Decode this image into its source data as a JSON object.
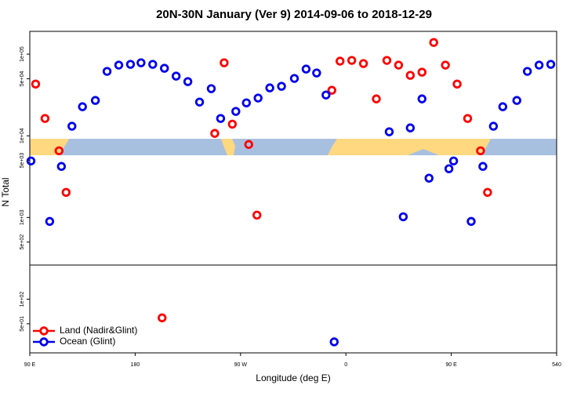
{
  "chart_data": {
    "type": "scatter",
    "title": "20N-30N January (Ver 9)   2014-09-06 to 2018-12-29",
    "xlabel": "Longitude (deg E)",
    "ylabel": "N Total",
    "xlim": [
      90,
      540
    ],
    "xticks": [
      {
        "value": 90,
        "label": "90 E"
      },
      180,
      {
        "value": 270,
        "label": "90 W"
      },
      {
        "value": 360,
        "label": "0"
      },
      {
        "value": 450,
        "label": "90 E"
      },
      540
    ],
    "ylim": [
      22,
      190000
    ],
    "ylog": true,
    "yticks": [
      {
        "value": 50,
        "label": "5e+01"
      },
      {
        "value": 100,
        "label": "1e+02"
      },
      {
        "value": 500,
        "label": "5e+02"
      },
      {
        "value": 1000,
        "label": "1e+03"
      },
      {
        "value": 5000,
        "label": "5e+03"
      },
      {
        "value": 10000,
        "label": "1e+04"
      },
      {
        "value": 50000,
        "label": "5e+04"
      },
      {
        "value": 100000,
        "label": "1e+05"
      }
    ],
    "legend": "bottomleft",
    "series": [
      {
        "name": "Land (Nadir&Glint)",
        "color": "#ff0000",
        "x": [
          95,
          103,
          115,
          121,
          203,
          248,
          256,
          263,
          277,
          284,
          348,
          355,
          365,
          375,
          386,
          395,
          405,
          415,
          425,
          435,
          445,
          455,
          464,
          475,
          481
        ],
        "values": [
          43000,
          16300,
          6560,
          2030,
          59,
          10700,
          78400,
          13900,
          7830,
          1070,
          36100,
          82000,
          83800,
          76700,
          28300,
          83800,
          73400,
          55000,
          60100,
          139000,
          73400,
          43000,
          16300,
          6560,
          2030
        ]
      },
      {
        "name": "Ocean (Glint)",
        "color": "#0000ee",
        "x": [
          91,
          107,
          117,
          126,
          135,
          146,
          156,
          166,
          176,
          185,
          195,
          205,
          215,
          225,
          235,
          245,
          253,
          266,
          275,
          285,
          295,
          305,
          316,
          326,
          335,
          343,
          350,
          397,
          409,
          415,
          425,
          431,
          448,
          452,
          467,
          477,
          486,
          494,
          506,
          515,
          525,
          535
        ],
        "values": [
          4920,
          895,
          4220,
          13100,
          22700,
          27100,
          61500,
          73400,
          75000,
          78400,
          75000,
          67100,
          53800,
          46100,
          25900,
          37800,
          16300,
          19900,
          25300,
          29000,
          38600,
          40400,
          50400,
          65600,
          58800,
          31600,
          30,
          11200,
          1020,
          12500,
          28300,
          3030,
          3950,
          4920,
          895,
          4220,
          13100,
          22700,
          27100,
          61500,
          73400,
          75000
        ]
      }
    ]
  }
}
